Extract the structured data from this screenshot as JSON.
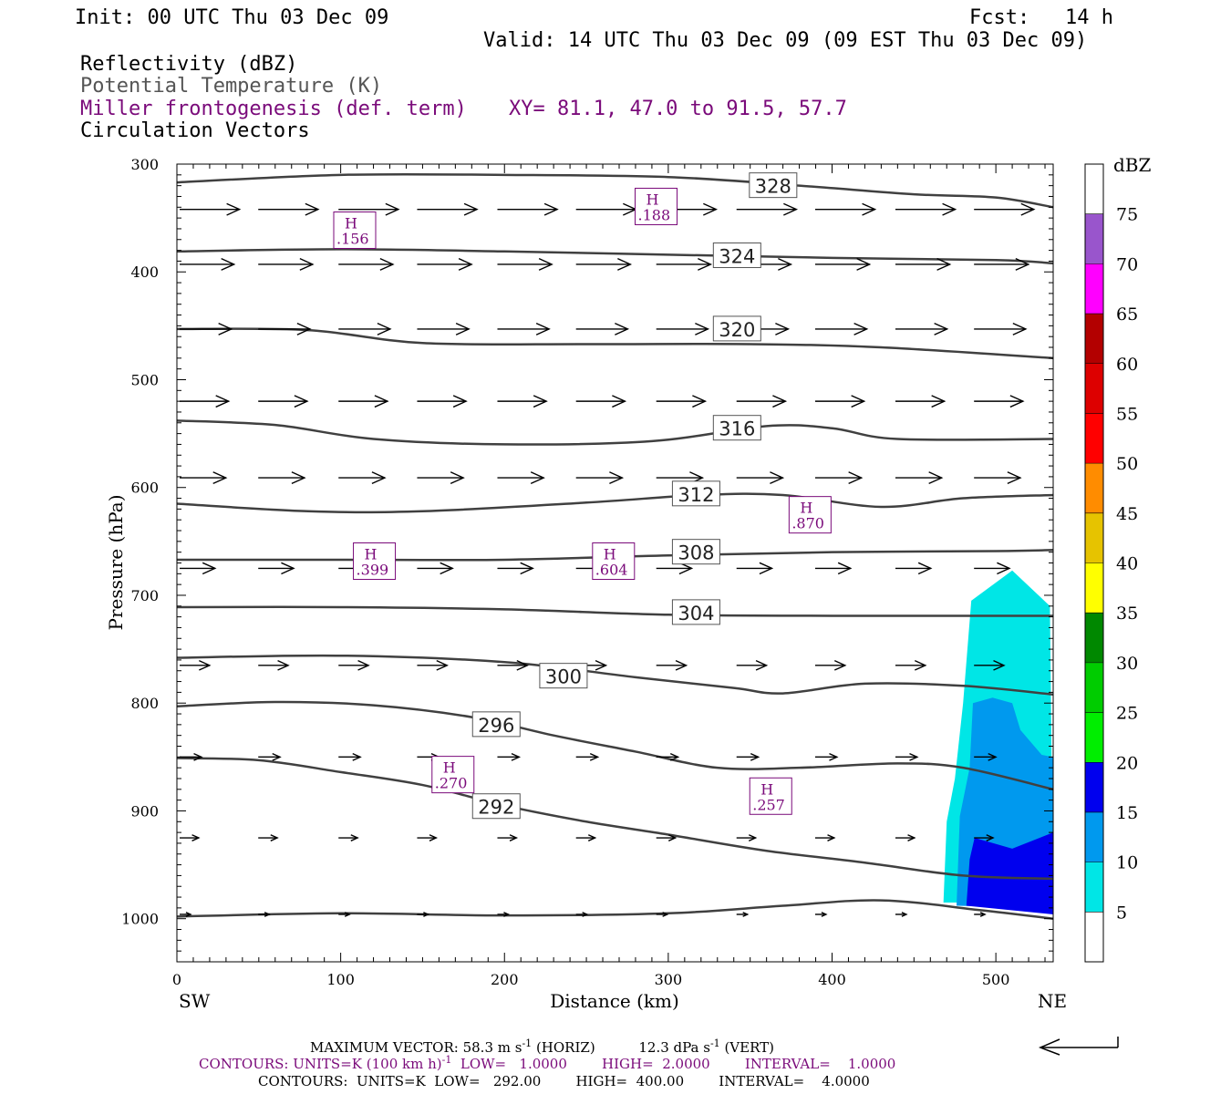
{
  "header": {
    "init": "Init: 00 UTC Thu 03 Dec 09",
    "fcst_label": "Fcst:",
    "fcst_value": "14 h",
    "valid": "Valid: 14 UTC Thu 03 Dec 09 (09 EST Thu 03 Dec 09)",
    "field1": "Reflectivity (dBZ)",
    "field2": "Potential Temperature (K)",
    "field3": "Miller frontogenesis (def. term)",
    "xy": "XY=  81.1, 47.0 to  91.5, 57.7",
    "field4": "Circulation Vectors"
  },
  "colors": {
    "black": "#000000",
    "theta": "#404040",
    "purple": "#7a0a7a"
  },
  "chart_data": {
    "type": "contour",
    "xlabel": "Distance (km)",
    "ylabel": "Pressure (hPa)",
    "xlim": [
      0,
      535
    ],
    "ylim": [
      1040,
      300
    ],
    "y_scale": "linear, inverted",
    "x_ticks": [
      0,
      100,
      200,
      300,
      400,
      500
    ],
    "y_ticks": [
      300,
      400,
      500,
      600,
      700,
      800,
      900,
      1000
    ],
    "left_end_label": "SW",
    "right_end_label": "NE",
    "theta_contours": [
      {
        "label": "328",
        "label_x": 364,
        "label_y": 320,
        "points": [
          [
            0,
            317
          ],
          [
            100,
            310
          ],
          [
            200,
            310
          ],
          [
            300,
            312
          ],
          [
            380,
            320
          ],
          [
            450,
            328
          ],
          [
            500,
            331
          ],
          [
            535,
            340
          ]
        ]
      },
      {
        "label": "324",
        "label_x": 342,
        "label_y": 385,
        "points": [
          [
            0,
            381
          ],
          [
            100,
            379
          ],
          [
            200,
            381
          ],
          [
            300,
            384
          ],
          [
            400,
            387
          ],
          [
            500,
            389
          ],
          [
            535,
            392
          ]
        ]
      },
      {
        "label": "320",
        "label_x": 342,
        "label_y": 453,
        "points": [
          [
            0,
            453
          ],
          [
            80,
            454
          ],
          [
            150,
            466
          ],
          [
            250,
            467
          ],
          [
            350,
            467
          ],
          [
            430,
            470
          ],
          [
            535,
            480
          ]
        ]
      },
      {
        "label": "316",
        "label_x": 342,
        "label_y": 545,
        "points": [
          [
            0,
            538
          ],
          [
            60,
            542
          ],
          [
            120,
            555
          ],
          [
            200,
            560
          ],
          [
            290,
            557
          ],
          [
            360,
            543
          ],
          [
            400,
            545
          ],
          [
            440,
            555
          ],
          [
            535,
            555
          ]
        ]
      },
      {
        "label": "312",
        "label_x": 317,
        "label_y": 606,
        "points": [
          [
            0,
            615
          ],
          [
            80,
            622
          ],
          [
            150,
            622
          ],
          [
            250,
            614
          ],
          [
            320,
            607
          ],
          [
            370,
            607
          ],
          [
            430,
            618
          ],
          [
            480,
            610
          ],
          [
            535,
            607
          ]
        ]
      },
      {
        "label": "308",
        "label_x": 317,
        "label_y": 660,
        "points": [
          [
            0,
            667
          ],
          [
            100,
            667
          ],
          [
            200,
            667
          ],
          [
            300,
            663
          ],
          [
            400,
            660
          ],
          [
            500,
            659
          ],
          [
            535,
            658
          ]
        ]
      },
      {
        "label": "304",
        "label_x": 317,
        "label_y": 716,
        "points": [
          [
            0,
            711
          ],
          [
            100,
            711
          ],
          [
            200,
            713
          ],
          [
            300,
            718
          ],
          [
            400,
            719
          ],
          [
            500,
            719
          ],
          [
            535,
            719
          ]
        ]
      },
      {
        "label": "300",
        "label_x": 236,
        "label_y": 775,
        "points": [
          [
            0,
            758
          ],
          [
            100,
            756
          ],
          [
            200,
            762
          ],
          [
            280,
            776
          ],
          [
            340,
            786
          ],
          [
            370,
            791
          ],
          [
            420,
            782
          ],
          [
            480,
            784
          ],
          [
            535,
            792
          ]
        ]
      },
      {
        "label": "296",
        "label_x": 195,
        "label_y": 820,
        "points": [
          [
            0,
            803
          ],
          [
            60,
            799
          ],
          [
            120,
            802
          ],
          [
            180,
            813
          ],
          [
            230,
            830
          ],
          [
            280,
            845
          ],
          [
            330,
            860
          ],
          [
            380,
            860
          ],
          [
            440,
            856
          ],
          [
            480,
            860
          ],
          [
            535,
            880
          ]
        ]
      },
      {
        "label": "292",
        "label_x": 195,
        "label_y": 896,
        "points": [
          [
            0,
            851
          ],
          [
            50,
            853
          ],
          [
            100,
            864
          ],
          [
            150,
            876
          ],
          [
            200,
            895
          ],
          [
            250,
            910
          ],
          [
            300,
            922
          ],
          [
            360,
            937
          ],
          [
            420,
            948
          ],
          [
            480,
            960
          ],
          [
            535,
            963
          ]
        ]
      },
      {
        "label": "",
        "label_x": 0,
        "label_y": 0,
        "points": [
          [
            0,
            998
          ],
          [
            100,
            995
          ],
          [
            200,
            997
          ],
          [
            300,
            995
          ],
          [
            370,
            988
          ],
          [
            430,
            983
          ],
          [
            490,
            992
          ],
          [
            535,
            1000
          ]
        ]
      }
    ],
    "frontogenesis_maxima": [
      {
        "label": "H",
        "value": ".156",
        "x": 108,
        "p": 363
      },
      {
        "label": "H",
        "value": ".188",
        "x": 292,
        "p": 341
      },
      {
        "label": "H",
        "value": ".870",
        "x": 386,
        "p": 627
      },
      {
        "label": "H",
        "value": ".399",
        "x": 120,
        "p": 670
      },
      {
        "label": "H",
        "value": ".604",
        "x": 266,
        "p": 670
      },
      {
        "label": "H",
        "value": ".270",
        "x": 168,
        "p": 868
      },
      {
        "label": "H",
        "value": ".257",
        "x": 362,
        "p": 888
      }
    ],
    "vector_rows": [
      {
        "p": 342,
        "dx": 44
      },
      {
        "p": 393,
        "dx": 40
      },
      {
        "p": 453,
        "dx": 38
      },
      {
        "p": 520,
        "dx": 36
      },
      {
        "p": 591,
        "dx": 34
      },
      {
        "p": 675,
        "dx": 26
      },
      {
        "p": 765,
        "dx": 22
      },
      {
        "p": 850,
        "dx": 16
      },
      {
        "p": 925,
        "dx": 14
      },
      {
        "p": 996,
        "dx": 8
      }
    ],
    "vector_x": [
      0,
      48,
      97,
      145,
      194,
      242,
      291,
      340,
      388,
      437,
      485
    ],
    "reflectivity_areas": [
      {
        "dbz": 5,
        "color": "#00e6e6",
        "points": [
          [
            468,
            985
          ],
          [
            470,
            910
          ],
          [
            475,
            870
          ],
          [
            480,
            800
          ],
          [
            485,
            705
          ],
          [
            510,
            677
          ],
          [
            533,
            710
          ],
          [
            535,
            985
          ]
        ]
      },
      {
        "dbz": 10,
        "color": "#0099ee",
        "points": [
          [
            476,
            988
          ],
          [
            478,
            905
          ],
          [
            484,
            860
          ],
          [
            486,
            800
          ],
          [
            498,
            795
          ],
          [
            510,
            800
          ],
          [
            515,
            825
          ],
          [
            528,
            848
          ],
          [
            535,
            850
          ],
          [
            535,
            990
          ]
        ]
      },
      {
        "dbz": 15,
        "color": "#0000ee",
        "points": [
          [
            482,
            988
          ],
          [
            484,
            945
          ],
          [
            487,
            925
          ],
          [
            510,
            935
          ],
          [
            535,
            920
          ],
          [
            535,
            996
          ]
        ]
      }
    ],
    "colorbar": {
      "title": "dBZ",
      "labels": [
        "5",
        "10",
        "15",
        "20",
        "25",
        "30",
        "35",
        "40",
        "45",
        "50",
        "55",
        "60",
        "65",
        "70",
        "75"
      ],
      "colors": [
        "#ffffff",
        "#00e6e6",
        "#0099ee",
        "#0000ee",
        "#00ee00",
        "#00cc00",
        "#008800",
        "#ffff00",
        "#e6c300",
        "#ff8c00",
        "#ff0000",
        "#dd0000",
        "#b30000",
        "#ff00ff",
        "#9955cc",
        "#ffffff"
      ]
    }
  },
  "footer": {
    "line1": "MAXIMUM VECTOR:  58.3 m s",
    "line1_sup": "-1",
    "line1_mid": " (HORIZ)          12.3 dPa s",
    "line1_sup2": "-1",
    "line1_end": " (VERT)",
    "line2": "CONTOURS:  UNITS=K (100 km h)",
    "line2_sup": "-1",
    "line2_end": "  LOW=   1.0000        HIGH=  2.0000        INTERVAL=    1.0000",
    "line3": "CONTOURS:  UNITS=K  LOW=   292.00        HIGH=  400.00        INTERVAL=    4.0000"
  }
}
